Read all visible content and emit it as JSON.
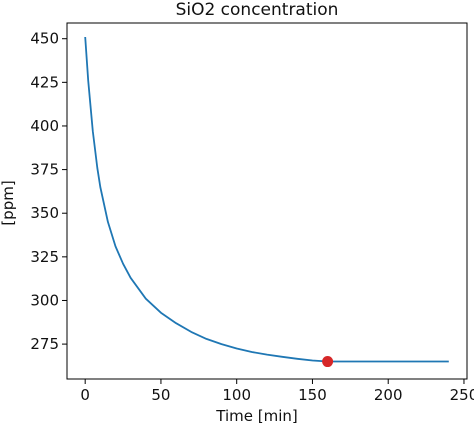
{
  "chart_data": {
    "type": "line",
    "title": "SiO2 concentration",
    "xlabel": "Time [min]",
    "ylabel": "[ppm]",
    "xlim": [
      -12,
      252
    ],
    "ylim": [
      255,
      459
    ],
    "xticks": [
      0,
      50,
      100,
      150,
      200,
      250
    ],
    "yticks": [
      275,
      300,
      325,
      350,
      375,
      400,
      425,
      450
    ],
    "grid": false,
    "line_color": "#1f77b4",
    "marker_color": "#d62728",
    "series": [
      {
        "x": [
          0,
          2,
          5,
          8,
          10,
          15,
          20,
          25,
          30,
          40,
          50,
          60,
          70,
          80,
          90,
          100,
          110,
          120,
          130,
          140,
          150,
          160,
          170,
          180,
          190,
          200,
          210,
          220,
          230,
          240
        ],
        "y": [
          451,
          426,
          397,
          376,
          365,
          345,
          331,
          321,
          313,
          301,
          293,
          287,
          282,
          278,
          275,
          272.5,
          270.5,
          269,
          267.7,
          266.6,
          265.6,
          265,
          265,
          265,
          265,
          265,
          265,
          265,
          265,
          265
        ]
      }
    ],
    "marker": {
      "x": 160,
      "y": 265
    }
  }
}
